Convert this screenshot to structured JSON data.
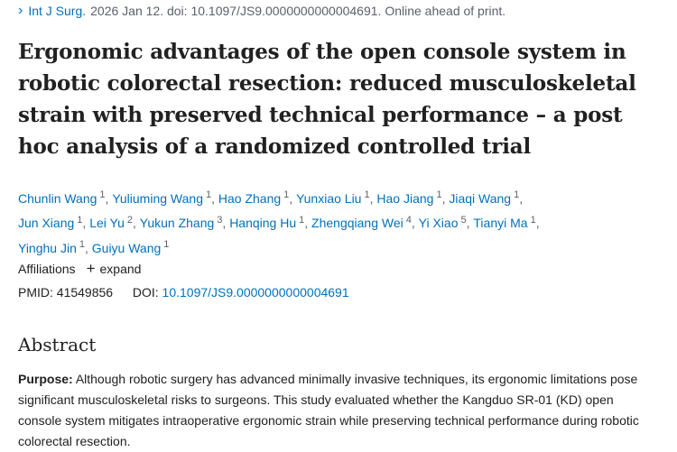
{
  "citation": {
    "journal": "Int J Surg.",
    "rest": "2026 Jan 12. doi: 10.1097/JS9.0000000000004691. Online ahead of print."
  },
  "title": "Ergonomic advantages of the open console system in robotic colorectal resection: reduced musculoskeletal strain with preserved technical performance – a post hoc analysis of a randomized controlled trial",
  "authors": [
    {
      "name": "Chunlin Wang",
      "aff": "1"
    },
    {
      "name": "Yuliuming Wang",
      "aff": "1"
    },
    {
      "name": "Hao Zhang",
      "aff": "1"
    },
    {
      "name": "Yunxiao Liu",
      "aff": "1"
    },
    {
      "name": "Hao Jiang",
      "aff": "1"
    },
    {
      "name": "Jiaqi Wang",
      "aff": "1"
    },
    {
      "name": "Jun Xiang",
      "aff": "1"
    },
    {
      "name": "Lei Yu",
      "aff": "2"
    },
    {
      "name": "Yukun Zhang",
      "aff": "3"
    },
    {
      "name": "Hanqing Hu",
      "aff": "1"
    },
    {
      "name": "Zhengqiang Wei",
      "aff": "4"
    },
    {
      "name": "Yi Xiao",
      "aff": "5"
    },
    {
      "name": "Tianyi Ma",
      "aff": "1"
    },
    {
      "name": "Yinghu Jin",
      "aff": "1"
    },
    {
      "name": "Guiyu Wang",
      "aff": "1"
    }
  ],
  "affiliations": {
    "label": "Affiliations",
    "expand": "expand"
  },
  "ids": {
    "pmid_label": "PMID:",
    "pmid": "41549856",
    "doi_label": "DOI:",
    "doi": "10.1097/JS9.0000000000004691"
  },
  "abstract": {
    "heading": "Abstract",
    "purpose_label": "Purpose:",
    "purpose_text": "Although robotic surgery has advanced minimally invasive techniques, its ergonomic limitations pose significant musculoskeletal risks to surgeons. This study evaluated whether the Kangduo SR-01 (KD) open console system mitigates intraoperative ergonomic strain while preserving technical performance during robotic colorectal resection."
  }
}
